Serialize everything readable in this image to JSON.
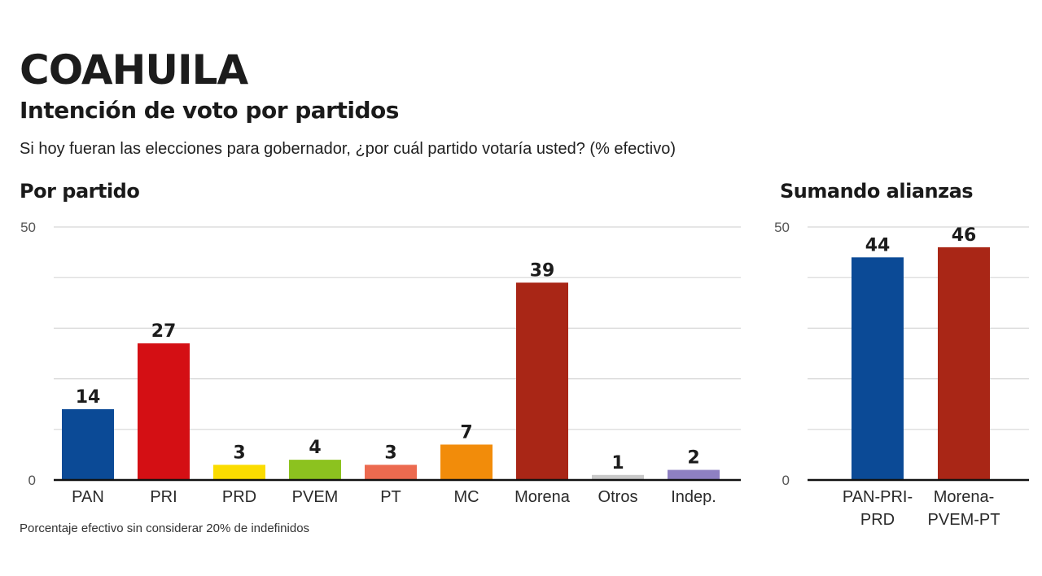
{
  "header": {
    "title": "COAHUILA",
    "subtitle": "Intención de voto por partidos",
    "question": "Si hoy fueran las elecciones para gobernador, ¿por cuál partido votaría usted? (% efectivo)"
  },
  "footnote": "Porcentaje efectivo sin considerar 20% de indefinidos",
  "chart_data": [
    {
      "type": "bar",
      "title": "Por partido",
      "xlabel": "",
      "ylabel": "",
      "ylim": [
        0,
        50
      ],
      "yticks": [
        0,
        50
      ],
      "gridlines": [
        0,
        10,
        20,
        30,
        40,
        50
      ],
      "grid": true,
      "categories": [
        "PAN",
        "PRI",
        "PRD",
        "PVEM",
        "PT",
        "MC",
        "Morena",
        "Otros",
        "Indep."
      ],
      "values": [
        14,
        27,
        3,
        4,
        3,
        7,
        39,
        1,
        2
      ],
      "colors": [
        "#0b4a96",
        "#d40f14",
        "#fbdc00",
        "#8cc21f",
        "#ec6a4f",
        "#f28c0a",
        "#a92616",
        "#c8c8c8",
        "#8e80c2"
      ]
    },
    {
      "type": "bar",
      "title": "Sumando alianzas",
      "xlabel": "",
      "ylabel": "",
      "ylim": [
        0,
        50
      ],
      "yticks": [
        0,
        50
      ],
      "gridlines": [
        0,
        10,
        20,
        30,
        40,
        50
      ],
      "grid": true,
      "categories": [
        [
          "PAN-PRI-",
          "PRD"
        ],
        [
          "Morena-",
          "PVEM-PT"
        ]
      ],
      "values": [
        44,
        46
      ],
      "colors": [
        "#0b4a96",
        "#a92616"
      ]
    }
  ]
}
